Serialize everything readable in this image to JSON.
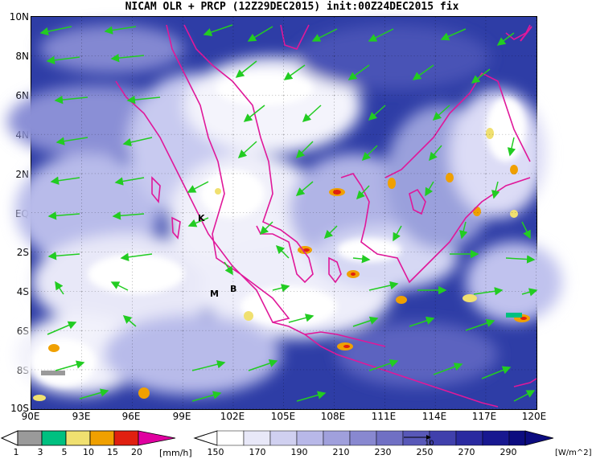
{
  "title": "NICAM OLR + PRCP (12Z29DEC2015) init:00Z24DEC2015 fix",
  "map": {
    "lat_labels": [
      "10N",
      "8N",
      "6N",
      "4N",
      "2N",
      "EQ",
      "2S",
      "4S",
      "6S",
      "8S",
      "10S"
    ],
    "lon_labels": [
      "90E",
      "93E",
      "96E",
      "99E",
      "102E",
      "105E",
      "108E",
      "111E",
      "114E",
      "117E",
      "120E"
    ],
    "place_labels": {
      "k": "K",
      "m": "M",
      "b": "B"
    },
    "vector_ref": "10"
  },
  "prcp_bar": {
    "colors": [
      "#9a9a9a",
      "#00c080",
      "#f0e070",
      "#f0a000",
      "#e02010",
      "#e000a0"
    ],
    "labels": [
      "1",
      "3",
      "5",
      "10",
      "15",
      "20"
    ],
    "unit": "[mm/h]"
  },
  "olr_bar": {
    "colors": [
      "#ffffff",
      "#e8e8f8",
      "#d0d0f0",
      "#b8b8e8",
      "#a0a0dc",
      "#8888d0",
      "#7070c4",
      "#5858b8",
      "#4040ac",
      "#2a2aa0",
      "#181890",
      "#0c0c80"
    ],
    "labels": [
      "150",
      "170",
      "190",
      "210",
      "230",
      "250",
      "270",
      "290"
    ],
    "unit": "[W/m^2]"
  }
}
